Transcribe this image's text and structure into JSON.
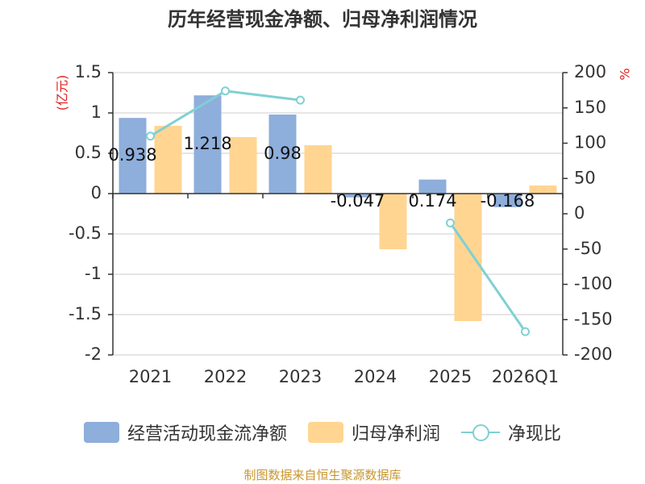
{
  "chart_data": {
    "type": "bar+line",
    "title": "历年经营现金净额、归母净利润情况",
    "categories": [
      "2021",
      "2022",
      "2023",
      "2024",
      "2025",
      "2026Q1"
    ],
    "left_axis": {
      "label": "(亿元)",
      "range": [
        -2,
        1.5
      ],
      "ticks": [
        "1.5",
        "1",
        "0.5",
        "0",
        "-0.5",
        "-1",
        "-1.5",
        "-2"
      ],
      "tick_values": [
        1.5,
        1,
        0.5,
        0,
        -0.5,
        -1,
        -1.5,
        -2
      ]
    },
    "right_axis": {
      "label": "%",
      "range": [
        -200,
        200
      ],
      "ticks": [
        "200",
        "150",
        "100",
        "50",
        "0",
        "-50",
        "-100",
        "-150",
        "-200"
      ],
      "tick_values": [
        200,
        150,
        100,
        50,
        0,
        -50,
        -100,
        -150,
        -200
      ]
    },
    "series": [
      {
        "name": "经营活动现金流净额",
        "type": "bar",
        "axis": "left",
        "color": "#8eaedb",
        "values": [
          0.938,
          1.218,
          0.98,
          -0.047,
          0.174,
          -0.168
        ],
        "labels": [
          "0.938",
          "1.218",
          "0.98",
          "-0.047",
          "0.174",
          "-0.168"
        ]
      },
      {
        "name": "归母净利润",
        "type": "bar",
        "axis": "left",
        "color": "#ffd591",
        "values": [
          0.84,
          0.7,
          0.6,
          -0.69,
          -1.58,
          0.1
        ]
      },
      {
        "name": "净现比",
        "type": "line",
        "axis": "right",
        "color": "#7fd0d4",
        "values": [
          110,
          174,
          161,
          null,
          -13,
          -167
        ]
      }
    ],
    "legend_position": "bottom",
    "grid": true
  },
  "source_text": "制图数据来自恒生聚源数据库"
}
